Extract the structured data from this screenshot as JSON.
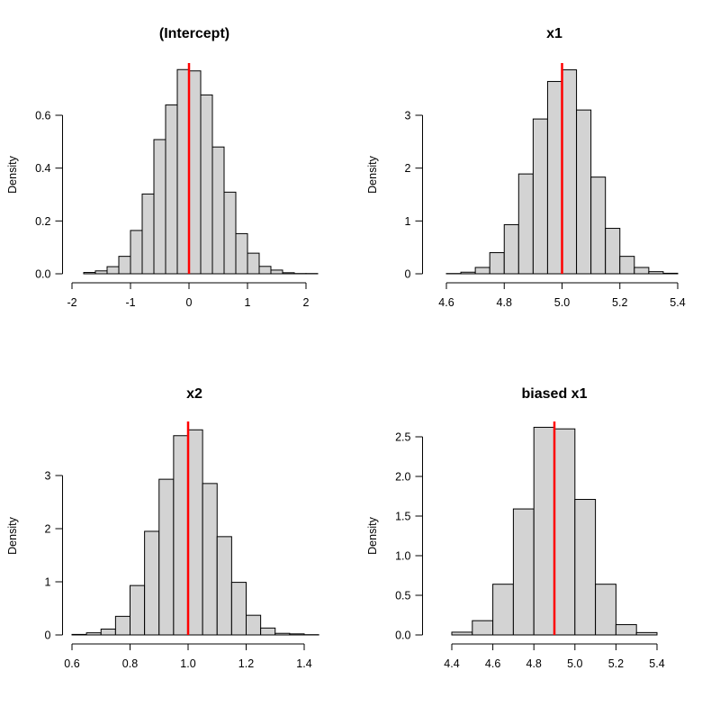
{
  "chart_data": [
    {
      "type": "bar",
      "title": "(Intercept)",
      "xlabel": "",
      "ylabel": "Density",
      "bin_width": 0.2,
      "bin_starts": [
        -2.0,
        -1.8,
        -1.6,
        -1.4,
        -1.2,
        -1.0,
        -0.8,
        -0.6,
        -0.4,
        -0.2,
        0.0,
        0.2,
        0.4,
        0.6,
        0.8,
        1.0,
        1.2,
        1.4,
        1.6,
        1.8,
        2.0
      ],
      "values": [
        0.0,
        0.005,
        0.011,
        0.027,
        0.066,
        0.164,
        0.302,
        0.508,
        0.639,
        0.773,
        0.768,
        0.677,
        0.48,
        0.309,
        0.152,
        0.078,
        0.028,
        0.014,
        0.004,
        0.001,
        0.001
      ],
      "reference_line": 0,
      "xticks": [
        "-2",
        "-1",
        "0",
        "1",
        "2"
      ],
      "yticks": [
        "0.0",
        "0.2",
        "0.4",
        "0.6"
      ],
      "xlim": [
        -2,
        2.2
      ],
      "ylim": [
        0,
        0.8
      ]
    },
    {
      "type": "bar",
      "title": "x1",
      "xlabel": "",
      "ylabel": "Density",
      "bin_width": 0.05,
      "bin_starts": [
        4.55,
        4.6,
        4.65,
        4.7,
        4.75,
        4.8,
        4.85,
        4.9,
        4.95,
        5.0,
        5.05,
        5.1,
        5.15,
        5.2,
        5.25,
        5.3,
        5.35
      ],
      "values": [
        0.0,
        0.005,
        0.03,
        0.12,
        0.4,
        0.93,
        1.89,
        2.93,
        3.64,
        3.86,
        3.1,
        1.83,
        0.86,
        0.33,
        0.12,
        0.04,
        0.01
      ],
      "reference_line": 5.0,
      "xticks": [
        "4.6",
        "4.8",
        "5.0",
        "5.2",
        "5.4"
      ],
      "yticks": [
        "0",
        "1",
        "2",
        "3"
      ],
      "xlim": [
        4.55,
        5.4
      ],
      "ylim": [
        0,
        4
      ]
    },
    {
      "type": "bar",
      "title": "x2",
      "xlabel": "",
      "ylabel": "Density",
      "bin_width": 0.05,
      "bin_starts": [
        0.6,
        0.65,
        0.7,
        0.75,
        0.8,
        0.85,
        0.9,
        0.95,
        1.0,
        1.05,
        1.1,
        1.15,
        1.2,
        1.25,
        1.3,
        1.35,
        1.4
      ],
      "values": [
        0.01,
        0.04,
        0.11,
        0.35,
        0.93,
        1.95,
        2.93,
        3.75,
        3.86,
        2.85,
        1.85,
        0.99,
        0.37,
        0.13,
        0.03,
        0.02,
        0.005
      ],
      "reference_line": 1.0,
      "xticks": [
        "0.6",
        "0.8",
        "1.0",
        "1.2",
        "1.4"
      ],
      "yticks": [
        "0",
        "1",
        "2",
        "3"
      ],
      "xlim": [
        0.6,
        1.45
      ],
      "ylim": [
        0,
        4
      ]
    },
    {
      "type": "bar",
      "title": "biased x1",
      "xlabel": "",
      "ylabel": "Density",
      "bin_width": 0.1,
      "bin_starts": [
        4.3,
        4.4,
        4.5,
        4.6,
        4.7,
        4.8,
        4.9,
        5.0,
        5.1,
        5.2,
        5.3,
        5.4
      ],
      "values": [
        0.0,
        0.035,
        0.18,
        0.64,
        1.59,
        2.62,
        2.6,
        1.71,
        0.64,
        0.13,
        0.03,
        0.0
      ],
      "reference_line": 4.9,
      "xticks": [
        "4.4",
        "4.6",
        "4.8",
        "5.0",
        "5.2",
        "5.4"
      ],
      "yticks": [
        "0.0",
        "0.5",
        "1.0",
        "1.5",
        "2.0",
        "2.5"
      ],
      "xlim": [
        4.3,
        5.5
      ],
      "ylim": [
        0,
        2.7
      ]
    }
  ],
  "colors": {
    "bar_fill": "#d3d3d3",
    "bar_stroke": "#000000",
    "reference_line": "#ff0000"
  }
}
